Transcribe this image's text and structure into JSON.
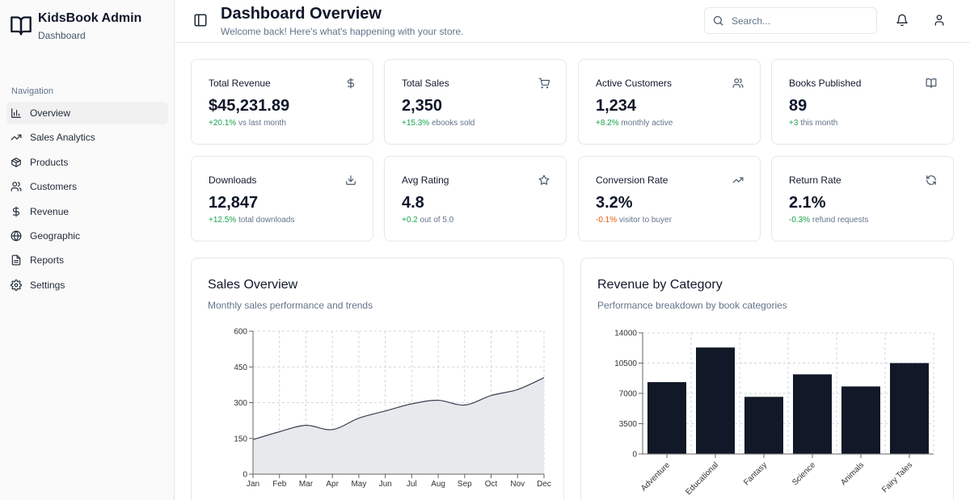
{
  "sidebar": {
    "brand_title": "KidsBook Admin",
    "brand_subtitle": "Dashboard",
    "nav_heading": "Navigation",
    "items": [
      {
        "label": "Overview",
        "icon": "bar-chart-icon",
        "active": true
      },
      {
        "label": "Sales Analytics",
        "icon": "trending-up-icon"
      },
      {
        "label": "Products",
        "icon": "package-icon"
      },
      {
        "label": "Customers",
        "icon": "users-icon"
      },
      {
        "label": "Revenue",
        "icon": "dollar-icon"
      },
      {
        "label": "Geographic",
        "icon": "globe-icon"
      },
      {
        "label": "Reports",
        "icon": "file-text-icon"
      },
      {
        "label": "Settings",
        "icon": "gear-icon"
      }
    ]
  },
  "header": {
    "title": "Dashboard Overview",
    "subtitle": "Welcome back! Here's what's happening with your store.",
    "search_placeholder": "Search..."
  },
  "stats": [
    {
      "label": "Total Revenue",
      "value": "$45,231.89",
      "delta": "+20.1%",
      "note": "vs last month",
      "icon": "dollar-icon"
    },
    {
      "label": "Total Sales",
      "value": "2,350",
      "delta": "+15.3%",
      "note": "ebooks sold",
      "icon": "cart-icon"
    },
    {
      "label": "Active Customers",
      "value": "1,234",
      "delta": "+8.2%",
      "note": "monthly active",
      "icon": "users-icon"
    },
    {
      "label": "Books Published",
      "value": "89",
      "delta": "+3",
      "note": "this month",
      "icon": "book-open-icon"
    },
    {
      "label": "Downloads",
      "value": "12,847",
      "delta": "+12.5%",
      "note": "total downloads",
      "icon": "download-icon"
    },
    {
      "label": "Avg Rating",
      "value": "4.8",
      "delta": "+0.2",
      "note": "out of 5.0",
      "icon": "star-icon"
    },
    {
      "label": "Conversion Rate",
      "value": "3.2%",
      "delta": "-0.1%",
      "note": "visitor to buyer",
      "icon": "trending-up-icon",
      "negative": true
    },
    {
      "label": "Return Rate",
      "value": "2.1%",
      "delta": "-0.3%",
      "note": "refund requests",
      "icon": "refresh-icon"
    }
  ],
  "sales_chart_card": {
    "title": "Sales Overview",
    "subtitle": "Monthly sales performance and trends"
  },
  "category_chart_card": {
    "title": "Revenue by Category",
    "subtitle": "Performance breakdown by book categories"
  },
  "colors": {
    "accent": "#111827",
    "area_fill": "#e5e7eb",
    "positive": "#16a34a",
    "negative": "#ea580c"
  },
  "chart_data": [
    {
      "type": "area",
      "title": "Sales Overview",
      "x": [
        "Jan",
        "Feb",
        "Mar",
        "Apr",
        "May",
        "Jun",
        "Jul",
        "Aug",
        "Sep",
        "Oct",
        "Nov",
        "Dec"
      ],
      "values": [
        145,
        178,
        205,
        187,
        235,
        265,
        295,
        310,
        290,
        330,
        355,
        405
      ],
      "ylim": [
        0,
        600
      ],
      "yticks": [
        0,
        150,
        300,
        450,
        600
      ],
      "grid": true
    },
    {
      "type": "bar",
      "title": "Revenue by Category",
      "categories": [
        "Adventure",
        "Educational",
        "Fantasy",
        "Science",
        "Animals",
        "Fairy Tales"
      ],
      "values": [
        8300,
        12300,
        6600,
        9200,
        7800,
        10500
      ],
      "ylim": [
        0,
        14000
      ],
      "yticks": [
        0,
        3500,
        7000,
        10500,
        14000
      ],
      "grid": true
    }
  ]
}
